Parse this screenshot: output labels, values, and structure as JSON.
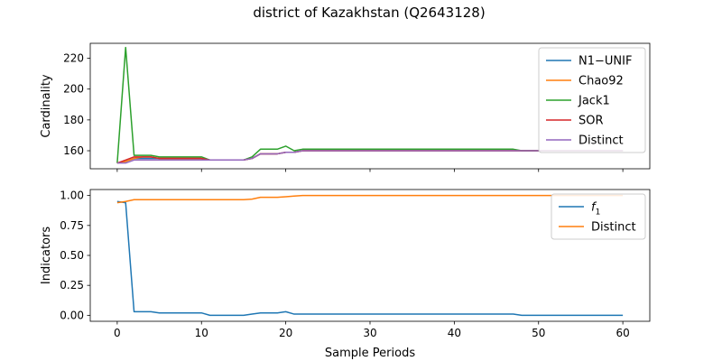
{
  "figure": {
    "title": "district of Kazakhstan (Q2643128)"
  },
  "chart_data": [
    {
      "type": "line",
      "ylabel": "Cardinality",
      "xlabel": "",
      "xlim": [
        -3.2,
        63.2
      ],
      "ylim": [
        148.3,
        229.7
      ],
      "yticks": [
        160,
        180,
        200,
        220
      ],
      "xticks": [
        0,
        10,
        20,
        30,
        40,
        50,
        60
      ],
      "show_xticklabels": false,
      "legend_position": "upper right",
      "series": [
        {
          "name": "N1−UNIF",
          "color": "#1f77b4",
          "points": [
            [
              0,
              152
            ],
            [
              1,
              153
            ],
            [
              2,
              155
            ],
            [
              3,
              155
            ],
            [
              4,
              155
            ],
            [
              5,
              155
            ],
            [
              10,
              155
            ],
            [
              11,
              154
            ],
            [
              15,
              154
            ],
            [
              16,
              155
            ],
            [
              17,
              158
            ],
            [
              19,
              158
            ],
            [
              20,
              159
            ],
            [
              21,
              159
            ],
            [
              22,
              160
            ],
            [
              47,
              160
            ],
            [
              48,
              160
            ],
            [
              60,
              160
            ]
          ]
        },
        {
          "name": "Chao92",
          "color": "#ff7f0e",
          "points": [
            [
              0,
              152
            ],
            [
              1,
              153
            ],
            [
              2,
              155
            ],
            [
              3,
              156
            ],
            [
              4,
              156
            ],
            [
              5,
              155
            ],
            [
              10,
              155
            ],
            [
              11,
              154
            ],
            [
              15,
              154
            ],
            [
              16,
              155
            ],
            [
              17,
              158
            ],
            [
              19,
              158
            ],
            [
              20,
              159
            ],
            [
              21,
              159
            ],
            [
              22,
              160
            ],
            [
              47,
              160
            ],
            [
              48,
              160
            ],
            [
              60,
              160
            ]
          ]
        },
        {
          "name": "Jack1",
          "color": "#2ca02c",
          "points": [
            [
              0,
              152
            ],
            [
              1,
              227
            ],
            [
              2,
              157
            ],
            [
              3,
              157
            ],
            [
              4,
              157
            ],
            [
              5,
              156
            ],
            [
              10,
              156
            ],
            [
              11,
              154
            ],
            [
              15,
              154
            ],
            [
              16,
              156
            ],
            [
              17,
              161
            ],
            [
              19,
              161
            ],
            [
              20,
              163
            ],
            [
              21,
              160
            ],
            [
              22,
              161
            ],
            [
              47,
              161
            ],
            [
              48,
              160
            ],
            [
              60,
              160
            ]
          ]
        },
        {
          "name": "SOR",
          "color": "#d62728",
          "points": [
            [
              0,
              152
            ],
            [
              1,
              154
            ],
            [
              2,
              156
            ],
            [
              3,
              156
            ],
            [
              4,
              156
            ],
            [
              5,
              155
            ],
            [
              10,
              155
            ],
            [
              11,
              154
            ],
            [
              15,
              154
            ],
            [
              16,
              155
            ],
            [
              17,
              158
            ],
            [
              19,
              158
            ],
            [
              20,
              159
            ],
            [
              21,
              159
            ],
            [
              22,
              160
            ],
            [
              47,
              160
            ],
            [
              48,
              160
            ],
            [
              60,
              160
            ]
          ]
        },
        {
          "name": "Distinct",
          "color": "#9467bd",
          "points": [
            [
              0,
              152
            ],
            [
              1,
              152
            ],
            [
              2,
              154
            ],
            [
              3,
              154
            ],
            [
              4,
              154
            ],
            [
              5,
              154
            ],
            [
              10,
              154
            ],
            [
              11,
              154
            ],
            [
              15,
              154
            ],
            [
              16,
              155
            ],
            [
              17,
              158
            ],
            [
              19,
              158
            ],
            [
              20,
              159
            ],
            [
              21,
              159
            ],
            [
              22,
              160
            ],
            [
              47,
              160
            ],
            [
              48,
              160
            ],
            [
              60,
              160
            ]
          ]
        }
      ]
    },
    {
      "type": "line",
      "ylabel": "Indicators",
      "xlabel": "Sample Periods",
      "xlim": [
        -3.2,
        63.2
      ],
      "ylim": [
        -0.05,
        1.05
      ],
      "yticks": [
        0.0,
        0.25,
        0.5,
        0.75,
        1.0
      ],
      "ytick_labels": [
        "0.00",
        "0.25",
        "0.50",
        "0.75",
        "1.00"
      ],
      "xticks": [
        0,
        10,
        20,
        30,
        40,
        50,
        60
      ],
      "xtick_labels": [
        "0",
        "10",
        "20",
        "30",
        "40",
        "50",
        "60"
      ],
      "show_xticklabels": true,
      "legend_position": "upper right",
      "series": [
        {
          "name": "f1",
          "color": "#1f77b4",
          "points": [
            [
              0,
              0.95
            ],
            [
              1,
              0.94
            ],
            [
              2,
              0.03
            ],
            [
              4,
              0.03
            ],
            [
              5,
              0.02
            ],
            [
              10,
              0.02
            ],
            [
              11,
              0.0
            ],
            [
              15,
              0.0
            ],
            [
              16,
              0.01
            ],
            [
              17,
              0.02
            ],
            [
              19,
              0.02
            ],
            [
              20,
              0.03
            ],
            [
              21,
              0.01
            ],
            [
              47,
              0.01
            ],
            [
              48,
              0.0
            ],
            [
              60,
              0.0
            ]
          ]
        },
        {
          "name": "Distinct",
          "color": "#ff7f0e",
          "points": [
            [
              0,
              0.94
            ],
            [
              1,
              0.95
            ],
            [
              2,
              0.965
            ],
            [
              15,
              0.965
            ],
            [
              16,
              0.97
            ],
            [
              17,
              0.985
            ],
            [
              19,
              0.985
            ],
            [
              20,
              0.99
            ],
            [
              21,
              0.995
            ],
            [
              22,
              1.0
            ],
            [
              60,
              1.0
            ]
          ]
        }
      ]
    }
  ]
}
